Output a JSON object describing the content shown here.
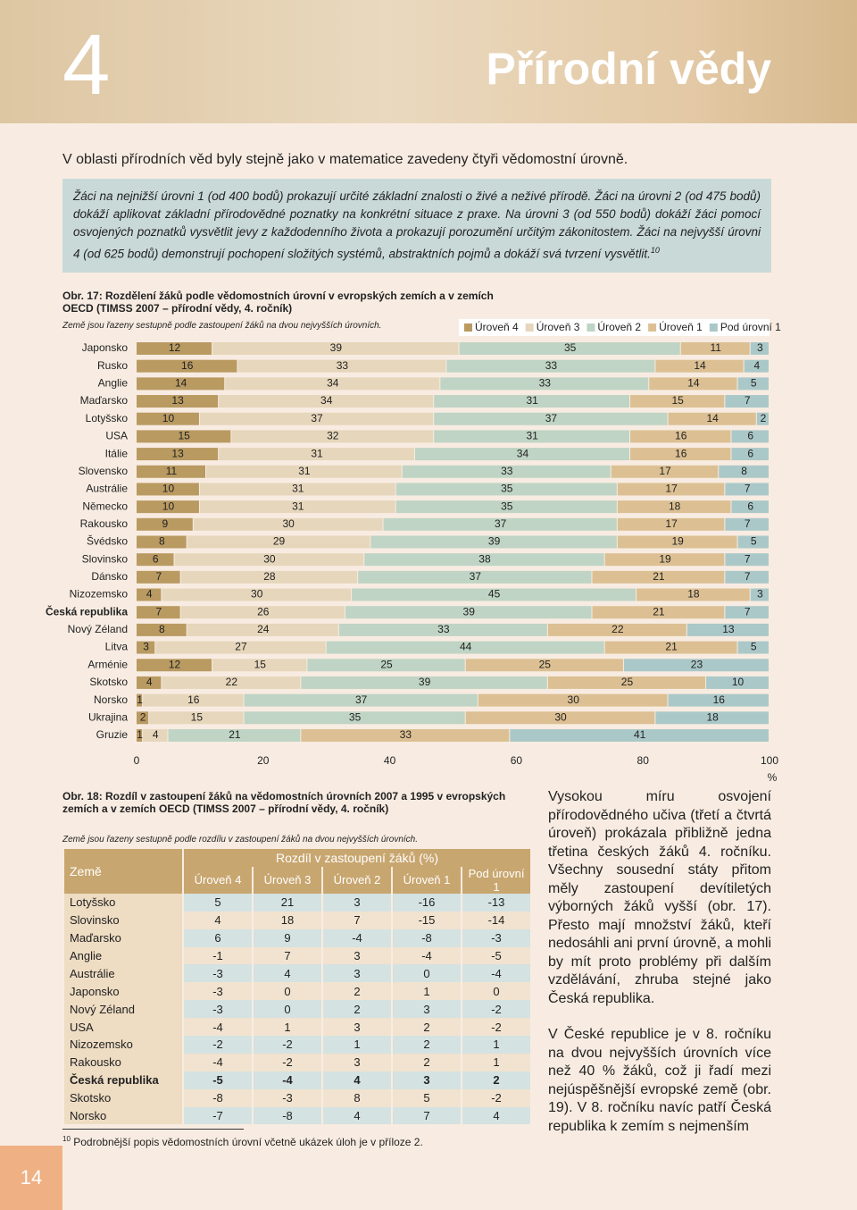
{
  "header": {
    "chapter": "4",
    "title": "Přírodní vědy"
  },
  "intro": "V oblasti přírodních věd byly stejně jako v matematice zavedeny čtyři vědomostní úrovně.",
  "box": {
    "text": "Žáci na nejnižší úrovni 1 (od 400 bodů) prokazují určité základní znalosti o živé a neživé přírodě. Žáci na úrovni 2 (od 475 bodů) dokáží aplikovat základní přírodovědné poznatky na konkrétní situace z praxe. Na úrovni 3 (od 550 bodů) dokáží žáci pomocí osvojených poznatků vysvětlit jevy z každodenního života a prokazují porozumění určitým zákonitostem. Žáci na nejvyšší úrovni 4 (od 625 bodů) demonstrují pochopení složitých systémů, abstraktních pojmů a dokáží svá tvrzení vysvětlit.",
    "footnote_ref": "10"
  },
  "chart_data": {
    "type": "stacked-barh",
    "title": "Obr. 17: Rozdělení žáků podle vědomostních úrovní v evropských zemích a v zemích OECD (TIMSS 2007 – přírodní vědy, 4. ročník)",
    "subtitle": "Země jsou řazeny sestupně podle zastoupení žáků na dvou nejvyšších úrovních.",
    "x_label": "%",
    "highlight": "Česká republika",
    "categories": [
      "Japonsko",
      "Rusko",
      "Anglie",
      "Maďarsko",
      "Lotyšsko",
      "USA",
      "Itálie",
      "Slovensko",
      "Austrálie",
      "Německo",
      "Rakousko",
      "Švédsko",
      "Slovinsko",
      "Dánsko",
      "Nizozemsko",
      "Česká republika",
      "Nový Zéland",
      "Litva",
      "Arménie",
      "Skotsko",
      "Norsko",
      "Ukrajina",
      "Gruzie"
    ],
    "series": [
      {
        "name": "Úroveň 4",
        "color": "#b99a61",
        "values": [
          12,
          16,
          14,
          13,
          10,
          15,
          13,
          11,
          10,
          10,
          9,
          8,
          6,
          7,
          4,
          7,
          8,
          3,
          12,
          4,
          1,
          2,
          1
        ]
      },
      {
        "name": "Úroveň 3",
        "color": "#e6d6bb",
        "values": [
          39,
          33,
          34,
          34,
          37,
          32,
          31,
          31,
          31,
          31,
          30,
          29,
          30,
          28,
          30,
          26,
          24,
          27,
          15,
          22,
          16,
          15,
          4
        ]
      },
      {
        "name": "Úroveň 2",
        "color": "#bfd4c4",
        "values": [
          35,
          33,
          33,
          31,
          37,
          31,
          34,
          33,
          35,
          35,
          37,
          39,
          38,
          37,
          45,
          39,
          33,
          44,
          25,
          39,
          37,
          35,
          21
        ]
      },
      {
        "name": "Úroveň 1",
        "color": "#dcc093",
        "values": [
          11,
          14,
          14,
          15,
          14,
          16,
          16,
          17,
          17,
          18,
          17,
          19,
          19,
          21,
          18,
          21,
          22,
          21,
          25,
          25,
          30,
          30,
          33
        ]
      },
      {
        "name": "Pod úrovní 1",
        "color": "#abc8c8",
        "values": [
          3,
          4,
          5,
          7,
          2,
          6,
          6,
          8,
          7,
          6,
          7,
          5,
          7,
          7,
          3,
          7,
          13,
          5,
          23,
          10,
          16,
          18,
          41
        ]
      }
    ],
    "xlim": [
      0,
      100
    ],
    "xticks": [
      0,
      20,
      40,
      60,
      80,
      100
    ],
    "legend": "top-right"
  },
  "table": {
    "title": "Obr. 18: Rozdíl v zastoupení žáků na vědomostních úrovních 2007 a 1995 v evropských zemích a v zemích OECD (TIMSS 2007 – přírodní vědy, 4. ročník)",
    "subtitle": "Země jsou řazeny sestupně podle rozdílu v zastoupení žáků na dvou nejvyšších úrovních.",
    "header": {
      "country": "Země",
      "group": "Rozdíl v zastoupení žáků (%)",
      "columns": [
        "Úroveň 4",
        "Úroveň 3",
        "Úroveň 2",
        "Úroveň 1",
        "Pod úrovní 1"
      ]
    },
    "highlight": "Česká republika",
    "rows": [
      [
        "Lotyšsko",
        5,
        21,
        3,
        -16,
        -13
      ],
      [
        "Slovinsko",
        4,
        18,
        7,
        -15,
        -14
      ],
      [
        "Maďarsko",
        6,
        9,
        -4,
        -8,
        -3
      ],
      [
        "Anglie",
        -1,
        7,
        3,
        -4,
        -5
      ],
      [
        "Austrálie",
        -3,
        4,
        3,
        0,
        -4
      ],
      [
        "Japonsko",
        -3,
        0,
        2,
        1,
        0
      ],
      [
        "Nový Zéland",
        -3,
        0,
        2,
        3,
        -2
      ],
      [
        "USA",
        -4,
        1,
        3,
        2,
        -2
      ],
      [
        "Nizozemsko",
        -2,
        -2,
        1,
        2,
        1
      ],
      [
        "Rakousko",
        -4,
        -2,
        3,
        2,
        1
      ],
      [
        "Česká republika",
        -5,
        -4,
        4,
        3,
        2
      ],
      [
        "Skotsko",
        -8,
        -3,
        8,
        5,
        -2
      ],
      [
        "Norsko",
        -7,
        -8,
        4,
        7,
        4
      ]
    ]
  },
  "sidebar": [
    "Vysokou míru osvojení přírodovědného učiva (třetí a čtvrtá úroveň) prokázala přibližně jedna třetina českých žáků 4. ročníku. Všechny sousední státy přitom měly zastoupení devítiletých výborných žáků vyšší (obr. 17). Přesto mají množství žáků, kteří nedosáhli ani první úrovně, a mohli by mít proto problémy při dalším vzdělávání, zhruba stejné jako Česká republika.",
    "V České republice je v 8. ročníku na dvou nejvyšších úrovních více než 40 % žáků, což ji řadí mezi nejúspěšnější evropské země (obr. 19). V 8. ročníku navíc patří Česká republika k zemím s nejmenším"
  ],
  "footnote": {
    "ref": "10",
    "text": "Podrobnější popis vědomostních úrovní včetně ukázek úloh je v příloze 2."
  },
  "page_number": "14"
}
